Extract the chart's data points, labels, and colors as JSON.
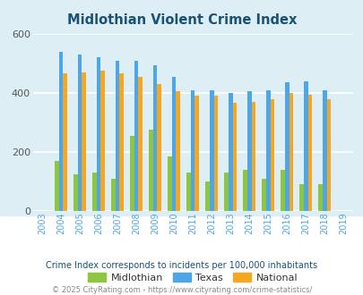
{
  "title": "Midlothian Violent Crime Index",
  "years": [
    2003,
    2004,
    2005,
    2006,
    2007,
    2008,
    2009,
    2010,
    2011,
    2012,
    2013,
    2014,
    2015,
    2016,
    2017,
    2018,
    2019
  ],
  "midlothian": [
    null,
    170,
    125,
    130,
    110,
    255,
    275,
    185,
    130,
    100,
    130,
    140,
    110,
    138,
    92,
    90,
    null
  ],
  "texas": [
    null,
    540,
    530,
    520,
    510,
    510,
    495,
    455,
    410,
    410,
    400,
    405,
    410,
    435,
    440,
    410,
    null
  ],
  "national": [
    null,
    465,
    470,
    475,
    465,
    455,
    430,
    405,
    390,
    390,
    365,
    370,
    380,
    400,
    395,
    380,
    null
  ],
  "midlothian_color": "#8dc63f",
  "texas_color": "#4da6e8",
  "national_color": "#f5a623",
  "bg_color": "#ddeef5",
  "plot_bg_color": "#ddeef5",
  "outer_bg_color": "#ffffff",
  "grid_color": "#ffffff",
  "ylim": [
    0,
    600
  ],
  "yticks": [
    0,
    200,
    400,
    600
  ],
  "bar_width": 0.22,
  "subtitle": "Crime Index corresponds to incidents per 100,000 inhabitants",
  "footer": "© 2025 CityRating.com - https://www.cityrating.com/crime-statistics/",
  "legend_labels": [
    "Midlothian",
    "Texas",
    "National"
  ],
  "title_color": "#1a5276",
  "subtitle_color": "#1a5276",
  "footer_color": "#888888",
  "tick_color": "#4da6e8"
}
